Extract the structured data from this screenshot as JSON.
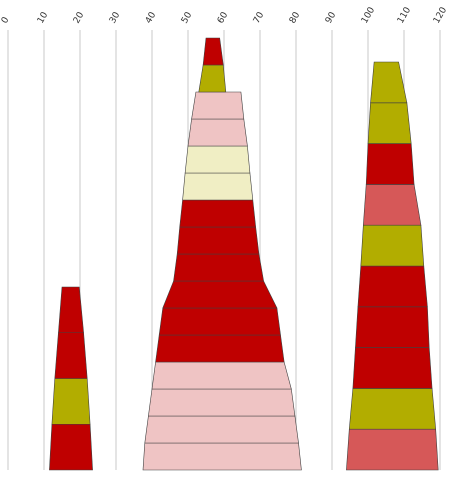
{
  "chart_data": {
    "type": "stacked-tapered-column",
    "title": "",
    "xlabel": "",
    "ylabel": "",
    "x_ticks": [
      0,
      10,
      20,
      30,
      40,
      50,
      60,
      70,
      80,
      90,
      100,
      110,
      120
    ],
    "xlim": [
      0,
      120
    ],
    "grid": "vertical gridlines at each tick",
    "colors": {
      "red": "#bf0000",
      "olive": "#b2ad00",
      "pink": "#efc4c4",
      "cream": "#f0eec4",
      "salmon": "#d65858"
    },
    "columns": [
      {
        "segments": [
          {
            "color": "red",
            "bottom_left": 11.5,
            "bottom_right": 23.5,
            "top_left": 12.2,
            "top_right": 22.8
          },
          {
            "color": "olive",
            "bottom_left": 12.2,
            "bottom_right": 22.8,
            "top_left": 13.0,
            "top_right": 22.0
          },
          {
            "color": "red",
            "bottom_left": 13.0,
            "bottom_right": 22.0,
            "top_left": 14.0,
            "top_right": 21.0
          },
          {
            "color": "red",
            "bottom_left": 14.0,
            "bottom_right": 21.0,
            "top_left": 15.0,
            "top_right": 19.8
          }
        ]
      },
      {
        "segments": [
          {
            "color": "pink",
            "bottom_left": 37.5,
            "bottom_right": 81.5,
            "top_left": 38.0,
            "top_right": 80.7
          },
          {
            "color": "pink",
            "bottom_left": 38.0,
            "bottom_right": 80.7,
            "top_left": 39.0,
            "top_right": 79.7
          },
          {
            "color": "pink",
            "bottom_left": 39.0,
            "bottom_right": 79.7,
            "top_left": 40.0,
            "top_right": 78.7
          },
          {
            "color": "pink",
            "bottom_left": 40.0,
            "bottom_right": 78.7,
            "top_left": 41.0,
            "top_right": 76.7
          },
          {
            "color": "red",
            "bottom_left": 41.0,
            "bottom_right": 76.7,
            "top_left": 42.0,
            "top_right": 75.7
          },
          {
            "color": "red",
            "bottom_left": 42.0,
            "bottom_right": 75.7,
            "top_left": 43.0,
            "top_right": 74.7
          },
          {
            "color": "red",
            "bottom_left": 43.0,
            "bottom_right": 74.7,
            "top_left": 46.0,
            "top_right": 71.0
          },
          {
            "color": "red",
            "bottom_left": 46.0,
            "bottom_right": 71.0,
            "top_left": 47.0,
            "top_right": 69.7
          },
          {
            "color": "red",
            "bottom_left": 47.0,
            "bottom_right": 69.7,
            "top_left": 47.7,
            "top_right": 68.8
          },
          {
            "color": "red",
            "bottom_left": 47.7,
            "bottom_right": 68.8,
            "top_left": 48.5,
            "top_right": 68.0
          },
          {
            "color": "cream",
            "bottom_left": 48.5,
            "bottom_right": 68.0,
            "top_left": 49.2,
            "top_right": 67.2
          },
          {
            "color": "cream",
            "bottom_left": 49.2,
            "bottom_right": 67.2,
            "top_left": 50.0,
            "top_right": 66.5
          },
          {
            "color": "pink",
            "bottom_left": 50.0,
            "bottom_right": 66.5,
            "top_left": 51.0,
            "top_right": 65.5
          },
          {
            "color": "pink",
            "bottom_left": 51.0,
            "bottom_right": 65.5,
            "top_left": 52.2,
            "top_right": 64.7
          },
          {
            "color": "olive",
            "bottom_left": 53.0,
            "bottom_right": 60.5,
            "top_left": 54.2,
            "top_right": 59.8
          },
          {
            "color": "red",
            "bottom_left": 54.2,
            "bottom_right": 59.8,
            "top_left": 55.0,
            "top_right": 58.8
          }
        ]
      },
      {
        "segments": [
          {
            "color": "salmon",
            "bottom_left": 94.0,
            "bottom_right": 119.5,
            "top_left": 94.8,
            "top_right": 118.8
          },
          {
            "color": "olive",
            "bottom_left": 94.8,
            "bottom_right": 118.8,
            "top_left": 95.8,
            "top_right": 117.8
          },
          {
            "color": "red",
            "bottom_left": 95.8,
            "bottom_right": 117.8,
            "top_left": 96.5,
            "top_right": 117.0
          },
          {
            "color": "red",
            "bottom_left": 96.5,
            "bottom_right": 117.0,
            "top_left": 97.2,
            "top_right": 116.5
          },
          {
            "color": "red",
            "bottom_left": 97.2,
            "bottom_right": 116.5,
            "top_left": 98.0,
            "top_right": 115.5
          },
          {
            "color": "olive",
            "bottom_left": 98.0,
            "bottom_right": 115.5,
            "top_left": 98.7,
            "top_right": 114.7
          },
          {
            "color": "salmon",
            "bottom_left": 98.7,
            "bottom_right": 114.7,
            "top_left": 99.5,
            "top_right": 112.8
          },
          {
            "color": "red",
            "bottom_left": 99.5,
            "bottom_right": 112.8,
            "top_left": 100.0,
            "top_right": 112.0
          },
          {
            "color": "olive",
            "bottom_left": 100.0,
            "bottom_right": 112.0,
            "top_left": 100.7,
            "top_right": 110.8
          },
          {
            "color": "olive",
            "bottom_left": 100.7,
            "bottom_right": 110.8,
            "top_left": 101.7,
            "top_right": 108.5
          }
        ]
      }
    ]
  }
}
